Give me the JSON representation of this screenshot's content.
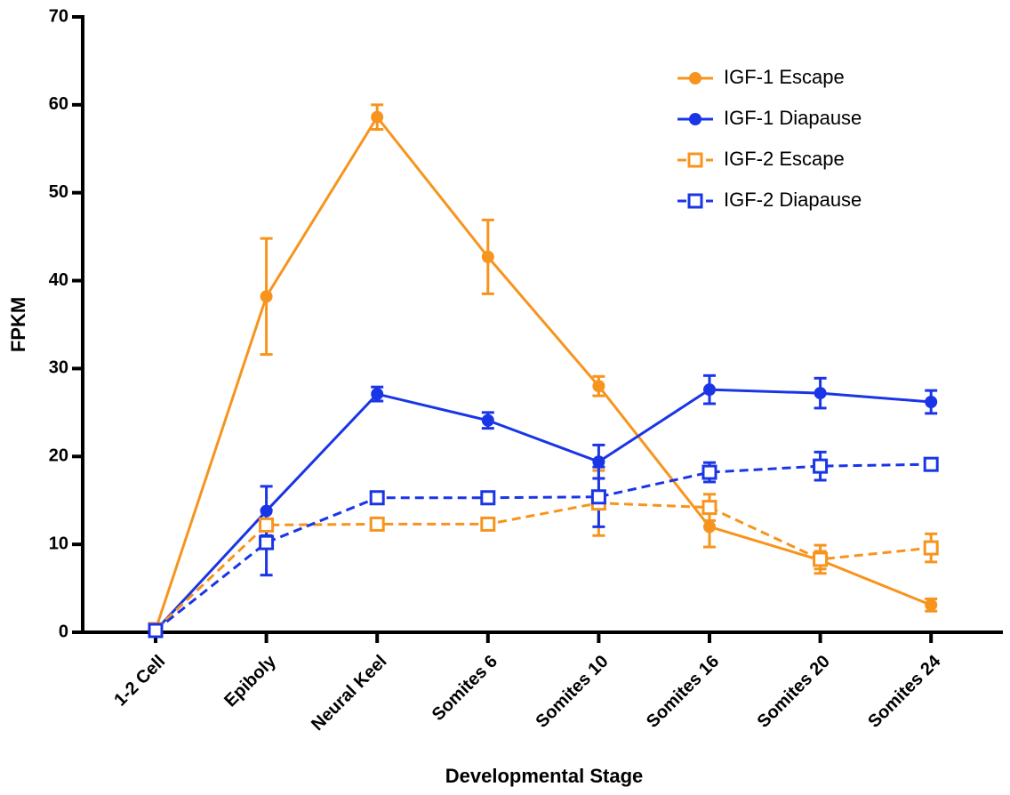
{
  "chart_data": {
    "type": "line",
    "x_label": "Developmental Stage",
    "y_label": "FPKM",
    "categories": [
      "1-2 Cell",
      "Epiboly",
      "Neural Keel",
      "Somites 6",
      "Somites 10",
      "Somites 16",
      "Somites 20",
      "Somites 24"
    ],
    "series": [
      {
        "name": "IGF-1 Escape",
        "color": "#f7941d",
        "dashed": false,
        "marker": "filled",
        "values": [
          0.3,
          38.2,
          58.6,
          42.7,
          28.0,
          12.0,
          8.2,
          3.1
        ],
        "errors": [
          0.3,
          6.6,
          1.4,
          4.2,
          1.1,
          2.3,
          1.0,
          0.7
        ]
      },
      {
        "name": "IGF-1 Diapause",
        "color": "#1a35e6",
        "dashed": false,
        "marker": "filled",
        "values": [
          0.2,
          13.8,
          27.1,
          24.1,
          19.4,
          27.6,
          27.2,
          26.2
        ],
        "errors": [
          0.2,
          2.8,
          0.8,
          0.9,
          1.9,
          1.6,
          1.7,
          1.3
        ]
      },
      {
        "name": "IGF-2 Escape",
        "color": "#f7941d",
        "dashed": true,
        "marker": "open",
        "values": [
          0.3,
          12.2,
          12.3,
          12.3,
          14.7,
          14.2,
          8.3,
          9.6
        ],
        "errors": [
          0.2,
          0.5,
          0.3,
          0.3,
          3.7,
          1.5,
          1.6,
          1.6
        ]
      },
      {
        "name": "IGF-2 Diapause",
        "color": "#1a35e6",
        "dashed": true,
        "marker": "open",
        "values": [
          0.2,
          10.2,
          15.3,
          15.3,
          15.4,
          18.2,
          18.9,
          19.1
        ],
        "errors": [
          0.2,
          3.7,
          0.3,
          0.3,
          3.4,
          1.1,
          1.6,
          0.5
        ]
      }
    ],
    "ylim": [
      0,
      70
    ],
    "yticks": [
      0,
      10,
      20,
      30,
      40,
      50,
      60,
      70
    ],
    "legend": "upper right",
    "grid": false
  }
}
